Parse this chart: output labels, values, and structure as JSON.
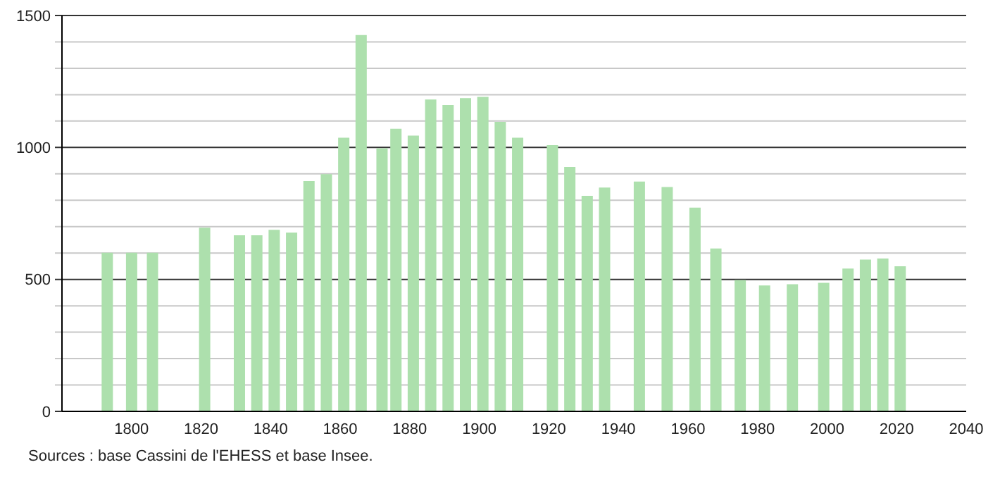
{
  "chart_data": {
    "type": "bar",
    "x": [
      1793,
      1800,
      1806,
      1821,
      1831,
      1836,
      1841,
      1846,
      1851,
      1856,
      1861,
      1866,
      1872,
      1876,
      1881,
      1886,
      1891,
      1896,
      1901,
      1906,
      1911,
      1921,
      1926,
      1931,
      1936,
      1946,
      1954,
      1962,
      1968,
      1975,
      1982,
      1990,
      1999,
      2006,
      2011,
      2016,
      2021
    ],
    "values": [
      601,
      601,
      601,
      696,
      667,
      667,
      688,
      677,
      873,
      899,
      1037,
      1426,
      997,
      1071,
      1045,
      1182,
      1161,
      1187,
      1192,
      1097,
      1037,
      1009,
      926,
      817,
      848,
      871,
      850,
      772,
      617,
      498,
      477,
      482,
      487,
      541,
      575,
      579,
      550
    ],
    "color": "#ade0ad",
    "xlim": [
      1780,
      2040
    ],
    "xticks": [
      1800,
      1820,
      1840,
      1860,
      1880,
      1900,
      1920,
      1940,
      1960,
      1980,
      2000,
      2020,
      2040
    ],
    "ylim": [
      0,
      1500
    ],
    "yticks": [
      0,
      {
        "value": 100,
        "label": null
      },
      {
        "value": 200,
        "label": null
      },
      {
        "value": 300,
        "label": null
      },
      {
        "value": 400,
        "label": null
      },
      500,
      {
        "value": 600,
        "label": null
      },
      {
        "value": 700,
        "label": null
      },
      {
        "value": 800,
        "label": null
      },
      {
        "value": 900,
        "label": null
      },
      1000,
      {
        "value": 1100,
        "label": null
      },
      {
        "value": 1200,
        "label": null
      },
      {
        "value": 1300,
        "label": null
      },
      {
        "value": 1400,
        "label": null
      },
      1500
    ],
    "grid": "y",
    "annotations": [
      "Sources : base Cassini de l'EHESS et base Insee."
    ]
  }
}
